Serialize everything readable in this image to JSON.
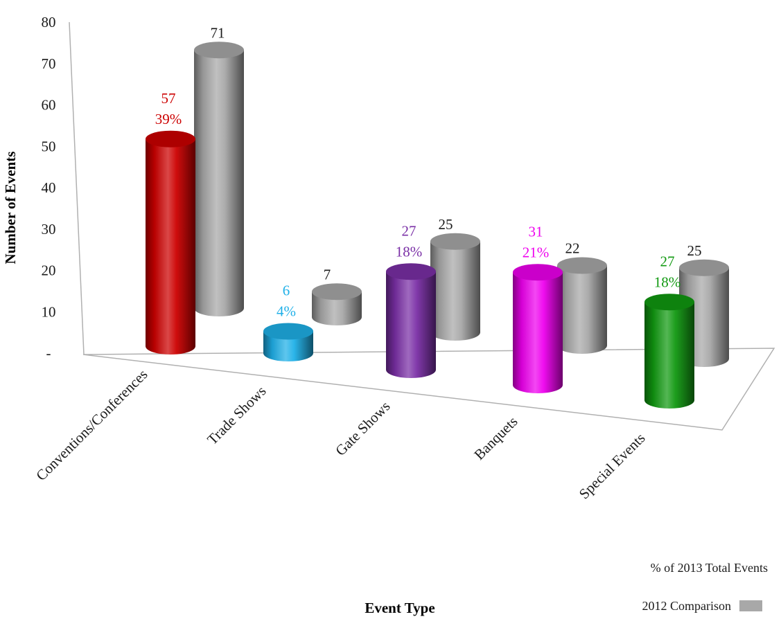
{
  "chart_data": {
    "type": "bar",
    "subtype": "3d-cylinder",
    "categories": [
      "Conventions/Conferences",
      "Trade Shows",
      "Gate Shows",
      "Banquets",
      "Special Events"
    ],
    "series": [
      {
        "name": "% of 2013 Total Events",
        "values": [
          57,
          6,
          27,
          31,
          27
        ],
        "percent_labels": [
          "39%",
          "4%",
          "18%",
          "21%",
          "18%"
        ],
        "colors": [
          "#cc0000",
          "#1fb0e8",
          "#7a2fa6",
          "#ee00ee",
          "#119911"
        ]
      },
      {
        "name": "2012 Comparison",
        "values": [
          71,
          7,
          25,
          22,
          25
        ],
        "color": "#a8a8a8"
      }
    ],
    "xlabel": "Event Type",
    "ylabel": "Number of Events",
    "ylim": [
      0,
      80
    ],
    "yticks": [
      {
        "value": 0,
        "label": "-"
      },
      {
        "value": 10,
        "label": "10"
      },
      {
        "value": 20,
        "label": "20"
      },
      {
        "value": 30,
        "label": "30"
      },
      {
        "value": 40,
        "label": "40"
      },
      {
        "value": 50,
        "label": "50"
      },
      {
        "value": 60,
        "label": "60"
      },
      {
        "value": 70,
        "label": "70"
      },
      {
        "value": 80,
        "label": "80"
      }
    ],
    "grid": false,
    "legend_position": "bottom-right"
  }
}
